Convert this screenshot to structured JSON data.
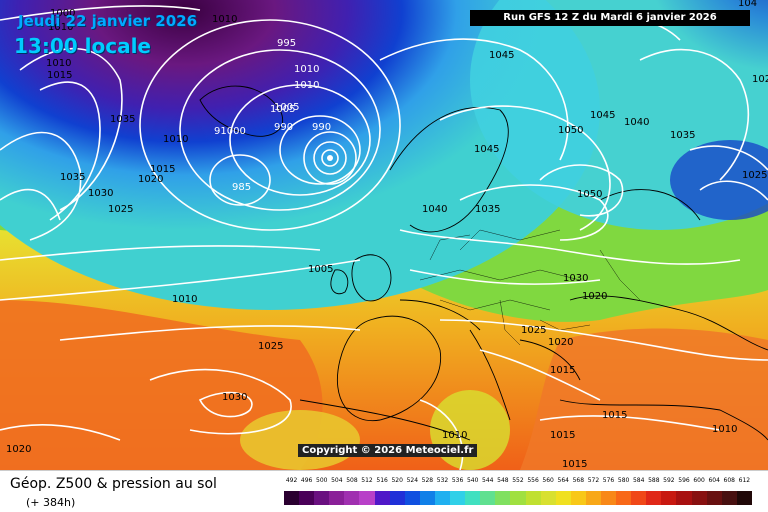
{
  "header": {
    "date": "Jeudi 22 janvier 2026",
    "time": "13:00 locale",
    "run": "Run GFS 12 Z du Mardi 6 janvier 2026"
  },
  "copyright": "Copyright © 2026 Meteociel.fr",
  "footer": {
    "title": "Géop. Z500 & pression au sol",
    "subtitle": "(+ 384h)"
  },
  "colors": {
    "deep_low": "#3a004a",
    "low": "#7a1c8a",
    "mid_low": "#1040d0",
    "cyan": "#30c8e8",
    "green": "#80d838",
    "yellow": "#e8e030",
    "orange": "#f09020",
    "red_orange": "#f06020"
  },
  "isobars": [
    {
      "v": "1010"
    },
    {
      "v": "1015"
    },
    {
      "v": "1035"
    },
    {
      "v": "1035"
    },
    {
      "v": "1030"
    },
    {
      "v": "1025"
    },
    {
      "v": "1020"
    },
    {
      "v": "1015"
    },
    {
      "v": "1010"
    },
    {
      "v": "1000"
    },
    {
      "v": "91000"
    },
    {
      "v": "985"
    },
    {
      "v": "990"
    },
    {
      "v": "1005"
    },
    {
      "v": "1010"
    },
    {
      "v": "1010"
    },
    {
      "v": "995"
    },
    {
      "v": "990"
    },
    {
      "v": "1010"
    },
    {
      "v": "1005"
    },
    {
      "v": "1010"
    },
    {
      "v": "1025"
    },
    {
      "v": "1030"
    },
    {
      "v": "1020"
    },
    {
      "v": "1045"
    },
    {
      "v": "1045"
    },
    {
      "v": "1050"
    },
    {
      "v": "1050"
    },
    {
      "v": "1045"
    },
    {
      "v": "1040"
    },
    {
      "v": "1035"
    },
    {
      "v": "1040"
    },
    {
      "v": "1035"
    },
    {
      "v": "1030"
    },
    {
      "v": "1020"
    },
    {
      "v": "1025"
    },
    {
      "v": "1020"
    },
    {
      "v": "1015"
    },
    {
      "v": "1015"
    },
    {
      "v": "1015"
    },
    {
      "v": "1015"
    },
    {
      "v": "1010"
    },
    {
      "v": "1010"
    },
    {
      "v": "1025"
    },
    {
      "v": "102"
    },
    {
      "v": "104"
    },
    {
      "v": "1005"
    },
    {
      "v": "1010"
    }
  ],
  "scale": {
    "labels": [
      "492",
      "496",
      "500",
      "504",
      "508",
      "512",
      "516",
      "520",
      "524",
      "528",
      "532",
      "536",
      "540",
      "544",
      "548",
      "552",
      "556",
      "560",
      "564",
      "568",
      "572",
      "576",
      "580",
      "584",
      "588",
      "592",
      "596",
      "600",
      "604",
      "608",
      "612"
    ],
    "colors": [
      "#2a0030",
      "#4a0058",
      "#6a1080",
      "#8a2098",
      "#a030b0",
      "#b840c8",
      "#5018c8",
      "#2030d8",
      "#1050e0",
      "#1080e8",
      "#20b0f0",
      "#30d0e8",
      "#40e0c0",
      "#60e090",
      "#80e060",
      "#a0e040",
      "#c0e030",
      "#d8e030",
      "#f0e020",
      "#f8c818",
      "#f8a818",
      "#f88818",
      "#f86818",
      "#f04818",
      "#e02818",
      "#c81810",
      "#a81010",
      "#881010",
      "#681010",
      "#481010",
      "#200808"
    ]
  }
}
